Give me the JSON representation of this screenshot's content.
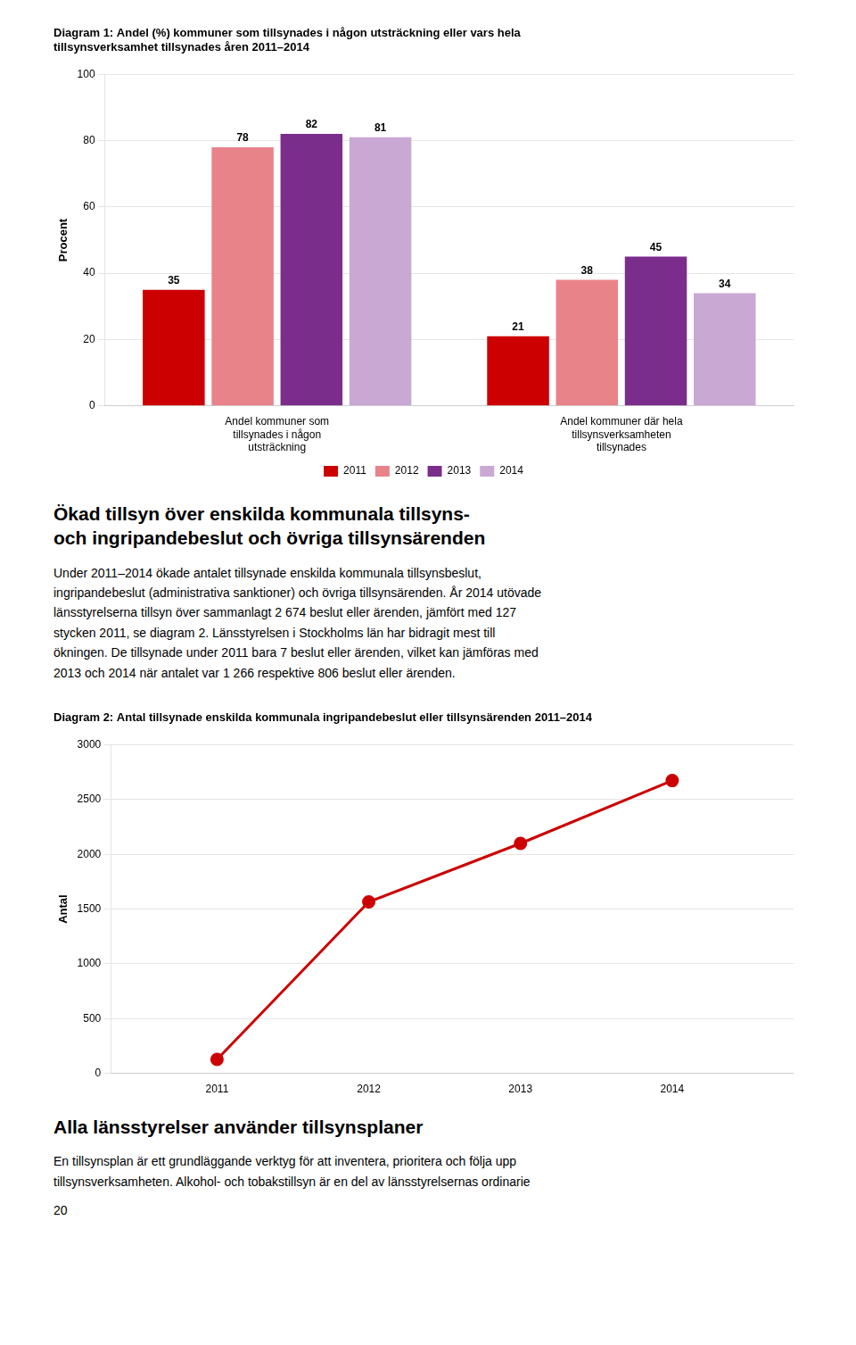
{
  "chart_data": [
    {
      "type": "bar",
      "title": "Diagram 1: Andel (%) kommuner som tillsynades i någon utsträckning eller vars hela\ntillsynsverksamhet tillsynades åren 2011–2014",
      "categories": [
        "Andel kommuner som\ntillsynades i någon\nutsträckning",
        "Andel kommuner där hela\ntillsynsverksamheten\ntillsynades"
      ],
      "series": [
        {
          "name": "2011",
          "color": "#cc0000",
          "values": [
            35,
            21
          ]
        },
        {
          "name": "2012",
          "color": "#e8838a",
          "values": [
            78,
            38
          ]
        },
        {
          "name": "2013",
          "color": "#7b2d8b",
          "values": [
            82,
            45
          ]
        },
        {
          "name": "2014",
          "color": "#c9a8d4",
          "values": [
            81,
            34
          ]
        }
      ],
      "ylabel": "Procent",
      "ylim": [
        0,
        100
      ],
      "yticks": [
        0,
        20,
        40,
        60,
        80,
        100
      ],
      "grid": true,
      "legend": "bottom",
      "data_labels": true,
      "annotations": [
        "Ökad tillsyn över enskilda kommunala tillsyns-\noch ingripandebeslut och övriga tillsynsärenden",
        "Under 2011–2014 ökade antalet tillsynade enskilda kommunala tillsynsbeslut,\ningripandebeslut (administrativa sanktioner) och övriga tillsynsärenden. År 2014 utövade\nlänsstyrelserna tillsyn över sammanlagt 2 674 beslut eller ärenden, jämfört med 127\nstycken 2011, se diagram 2. Länsstyrelsen i Stockholms län har bidragit mest till\nökningen. De tillsynade under 2011 bara 7 beslut eller ärenden, vilket kan jämföras med\n2013 och 2014 när antalet var 1 266 respektive 806 beslut eller ärenden."
      ]
    },
    {
      "type": "line",
      "title": "Diagram 2: Antal tillsynade enskilda kommunala ingripandebeslut eller tillsynsärenden 2011–2014",
      "x": [
        2011,
        2012,
        2013,
        2014
      ],
      "values": [
        127,
        1566,
        2100,
        2674
      ],
      "color": "#cc0000",
      "marker": "circle",
      "line_style": "solid",
      "xlim": [
        2010.3,
        2014.8
      ],
      "xticks": [
        2011,
        2012,
        2013,
        2014
      ],
      "ylabel": "Antal",
      "ylim": [
        0,
        3000
      ],
      "yticks": [
        0,
        500,
        1000,
        1500,
        2000,
        2500,
        3000
      ],
      "grid": true,
      "annotations": [
        "Alla länsstyrelser använder tillsynsplaner",
        "En tillsynsplan är ett grundläggande verktyg för att inventera, prioritera och följa upp\ntillsynsverksamheten. Alkohol- och tobakstillsyn är en del av länsstyrelsernas ordinarie",
        "20"
      ]
    }
  ]
}
